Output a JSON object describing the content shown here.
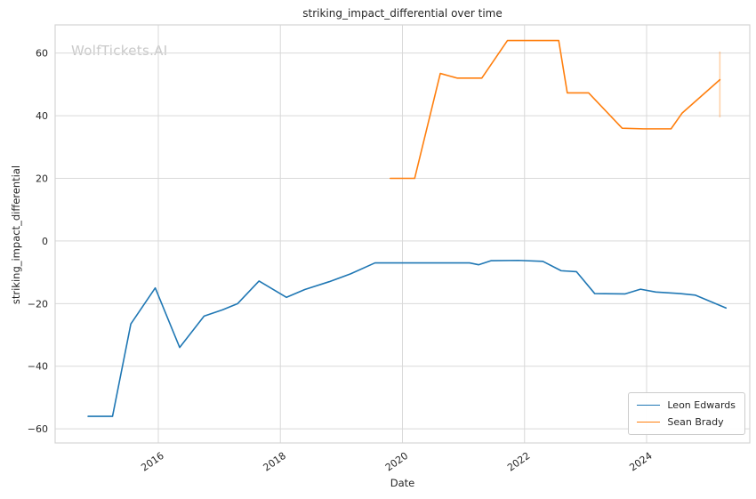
{
  "figure": {
    "title": "striking_impact_differential over time",
    "watermark": "WolfTickets.AI",
    "xlabel": "Date",
    "ylabel": "striking_impact_differential"
  },
  "chart_data": {
    "type": "line",
    "title": "striking_impact_differential over time",
    "xlabel": "Date",
    "ylabel": "striking_impact_differential",
    "grid": true,
    "legend_position": "lower right",
    "xlim": [
      2014.31,
      2025.69
    ],
    "ylim": [
      -64.5,
      69
    ],
    "x_ticks": [
      2016,
      2018,
      2020,
      2022,
      2024
    ],
    "x_tick_labels": [
      "2016",
      "2018",
      "2020",
      "2022",
      "2024"
    ],
    "y_ticks": [
      -60,
      -40,
      -20,
      0,
      20,
      40,
      60
    ],
    "y_tick_labels": [
      "−60",
      "−40",
      "−20",
      "0",
      "20",
      "40",
      "60"
    ],
    "series": [
      {
        "name": "Leon Edwards",
        "color": "#1f77b4",
        "points": [
          [
            2014.85,
            -56
          ],
          [
            2015.25,
            -56
          ],
          [
            2015.55,
            -26.5
          ],
          [
            2015.95,
            -15
          ],
          [
            2016.35,
            -34
          ],
          [
            2016.75,
            -24
          ],
          [
            2017.05,
            -22
          ],
          [
            2017.3,
            -20
          ],
          [
            2017.65,
            -12.8
          ],
          [
            2018.1,
            -18
          ],
          [
            2018.4,
            -15.5
          ],
          [
            2018.8,
            -13
          ],
          [
            2019.15,
            -10.5
          ],
          [
            2019.55,
            -7
          ],
          [
            2020.0,
            -7
          ],
          [
            2020.5,
            -7
          ],
          [
            2021.1,
            -7
          ],
          [
            2021.25,
            -7.6
          ],
          [
            2021.45,
            -6.3
          ],
          [
            2021.9,
            -6.2
          ],
          [
            2022.3,
            -6.5
          ],
          [
            2022.6,
            -9.5
          ],
          [
            2022.85,
            -9.8
          ],
          [
            2023.15,
            -16.8
          ],
          [
            2023.65,
            -16.9
          ],
          [
            2023.9,
            -15.4
          ],
          [
            2024.15,
            -16.3
          ],
          [
            2024.55,
            -16.8
          ],
          [
            2024.8,
            -17.3
          ],
          [
            2025.3,
            -21.4
          ]
        ]
      },
      {
        "name": "Sean Brady",
        "color": "#ff7f0e",
        "points": [
          [
            2019.8,
            20
          ],
          [
            2020.2,
            20
          ],
          [
            2020.62,
            53.5
          ],
          [
            2020.9,
            52
          ],
          [
            2021.3,
            52
          ],
          [
            2021.72,
            64
          ],
          [
            2022.15,
            64
          ],
          [
            2022.56,
            64
          ],
          [
            2022.7,
            47.3
          ],
          [
            2023.05,
            47.3
          ],
          [
            2023.6,
            36
          ],
          [
            2023.95,
            35.8
          ],
          [
            2024.4,
            35.8
          ],
          [
            2024.58,
            40.8
          ],
          [
            2025.2,
            51.5
          ]
        ],
        "error_bar": {
          "x": 2025.2,
          "y_low": 39.5,
          "y_high": 60.5
        }
      }
    ]
  },
  "legend": {
    "items": [
      {
        "label": "Leon Edwards",
        "color": "#1f77b4"
      },
      {
        "label": "Sean Brady",
        "color": "#ff7f0e"
      }
    ]
  },
  "style": {
    "grid_color": "#d9d9d9",
    "border_color": "#d4d4d4",
    "tick_label_color": "#262626"
  }
}
